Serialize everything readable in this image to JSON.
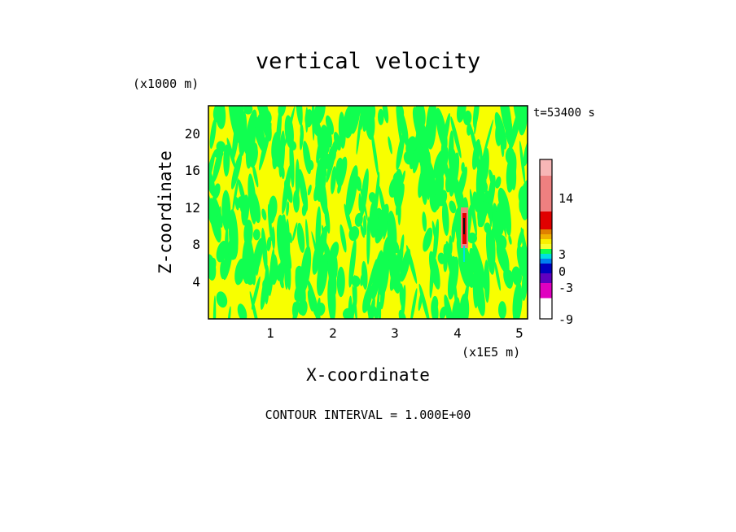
{
  "chart_data": {
    "type": "heatmap",
    "title": "vertical velocity",
    "xlabel": "X-coordinate",
    "ylabel": "Z-coordinate",
    "x_unit": "(x1E5 m)",
    "y_unit": "(x1000 m)",
    "time_label": "t=53400 s",
    "footer": "CONTOUR INTERVAL = 1.000E+00",
    "xlim": [
      0,
      5.1
    ],
    "ylim": [
      0,
      23
    ],
    "xticks": [
      "1",
      "2",
      "3",
      "4",
      "5"
    ],
    "yticks": [
      "4",
      "8",
      "12",
      "16",
      "20"
    ],
    "dominant_levels": {
      "positive_small": "yellow",
      "negative_small": "green"
    },
    "updraft_column": {
      "x": 4.1,
      "z_range": [
        8,
        13
      ],
      "max_value": 14
    },
    "colorbar": {
      "tick_labels": [
        "14",
        "3",
        "0",
        "-3",
        "-9"
      ],
      "levels": [
        {
          "color": "#f7b6b6"
        },
        {
          "color": "#ee8080"
        },
        {
          "color": "#e00000"
        },
        {
          "color": "#e08000"
        },
        {
          "color": "#f0b000"
        },
        {
          "color": "#f8f000"
        },
        {
          "color": "#f8ff30"
        },
        {
          "color": "#10ff50"
        },
        {
          "color": "#00e0e0"
        },
        {
          "color": "#0080f0"
        },
        {
          "color": "#0000c0"
        },
        {
          "color": "#6000c0"
        },
        {
          "color": "#e000c0"
        }
      ]
    }
  },
  "colors": {
    "yellow": "#f8ff00",
    "green": "#10ff50"
  }
}
